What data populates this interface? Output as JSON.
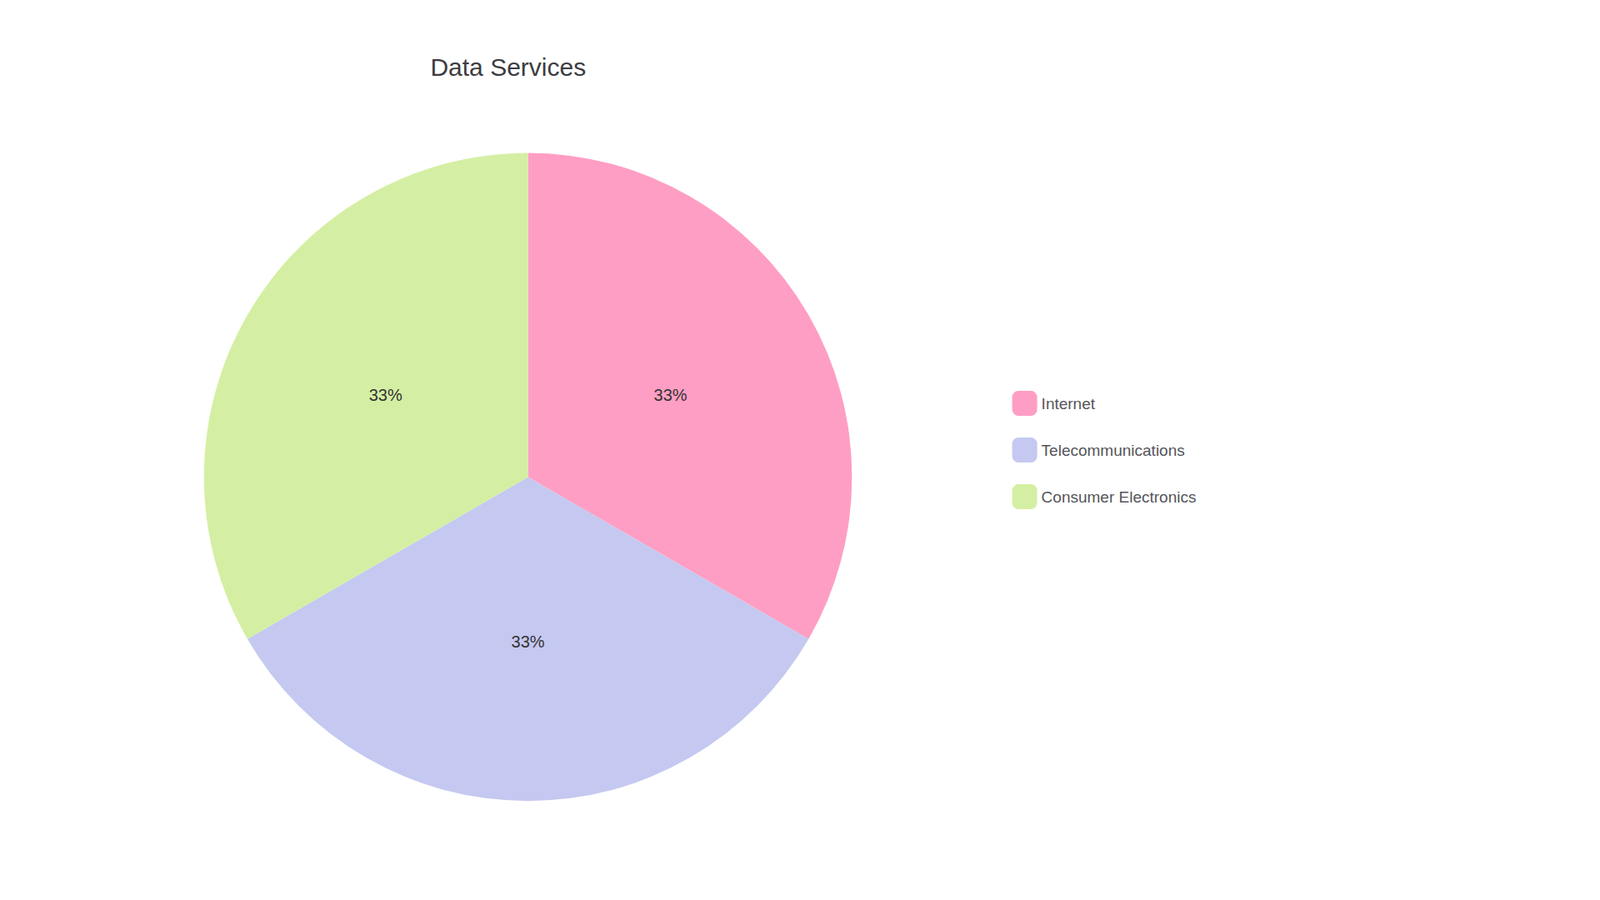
{
  "chart_data": {
    "type": "pie",
    "title": "Data Services",
    "categories": [
      "Internet",
      "Telecommunications",
      "Consumer Electronics"
    ],
    "values": [
      33,
      33,
      33
    ],
    "value_labels": [
      "33%",
      "33%",
      "33%"
    ],
    "colors": [
      "#FF9EC4",
      "#C5C8F0",
      "#D4EFA3"
    ],
    "data_labels": true,
    "legend": "right"
  }
}
